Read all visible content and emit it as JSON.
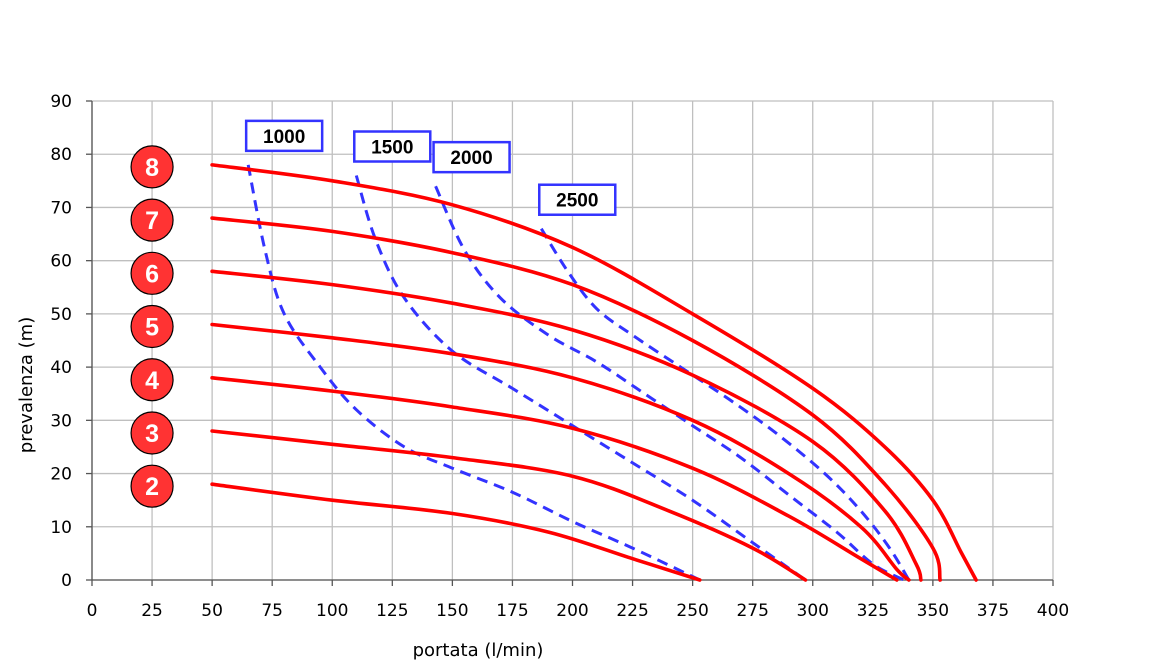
{
  "chart_data": {
    "type": "line",
    "title": "",
    "xlabel": "portata (l/min)",
    "ylabel": "prevalenza (m)",
    "xlim": [
      0,
      400
    ],
    "ylim": [
      0,
      90
    ],
    "x_ticks": [
      0,
      25,
      50,
      75,
      100,
      125,
      150,
      175,
      200,
      225,
      250,
      275,
      300,
      325,
      350,
      375,
      400
    ],
    "y_ticks": [
      0,
      10,
      20,
      30,
      40,
      50,
      60,
      70,
      80,
      90
    ],
    "grid": true,
    "series": [
      {
        "name": "2",
        "color": "#ff0000",
        "style": "solid",
        "points": [
          [
            50,
            18
          ],
          [
            100,
            15
          ],
          [
            150,
            12.5
          ],
          [
            190,
            9
          ],
          [
            225,
            4
          ],
          [
            253,
            0
          ]
        ]
      },
      {
        "name": "3",
        "color": "#ff0000",
        "style": "solid",
        "points": [
          [
            50,
            28
          ],
          [
            100,
            25.5
          ],
          [
            150,
            23
          ],
          [
            200,
            19.5
          ],
          [
            240,
            13
          ],
          [
            275,
            6
          ],
          [
            297,
            0
          ]
        ]
      },
      {
        "name": "4",
        "color": "#ff0000",
        "style": "solid",
        "points": [
          [
            50,
            38
          ],
          [
            100,
            35.5
          ],
          [
            150,
            32.5
          ],
          [
            200,
            28.5
          ],
          [
            250,
            21
          ],
          [
            290,
            12
          ],
          [
            320,
            4
          ],
          [
            335,
            0
          ]
        ]
      },
      {
        "name": "5",
        "color": "#ff0000",
        "style": "solid",
        "points": [
          [
            50,
            48
          ],
          [
            100,
            45.5
          ],
          [
            150,
            42.5
          ],
          [
            200,
            38
          ],
          [
            250,
            30
          ],
          [
            290,
            20
          ],
          [
            320,
            10
          ],
          [
            335,
            2
          ],
          [
            340,
            0
          ]
        ]
      },
      {
        "name": "6",
        "color": "#ff0000",
        "style": "solid",
        "points": [
          [
            50,
            58
          ],
          [
            100,
            55.5
          ],
          [
            150,
            52
          ],
          [
            200,
            47
          ],
          [
            250,
            38.5
          ],
          [
            300,
            26
          ],
          [
            330,
            13
          ],
          [
            343,
            3
          ],
          [
            345,
            0
          ]
        ]
      },
      {
        "name": "7",
        "color": "#ff0000",
        "style": "solid",
        "points": [
          [
            50,
            68
          ],
          [
            100,
            65.5
          ],
          [
            150,
            61.5
          ],
          [
            200,
            55.5
          ],
          [
            250,
            45
          ],
          [
            300,
            31
          ],
          [
            330,
            18
          ],
          [
            350,
            6
          ],
          [
            353,
            0
          ]
        ]
      },
      {
        "name": "8",
        "color": "#ff0000",
        "style": "solid",
        "points": [
          [
            50,
            78
          ],
          [
            100,
            75
          ],
          [
            150,
            70.5
          ],
          [
            200,
            62.5
          ],
          [
            250,
            50
          ],
          [
            300,
            36
          ],
          [
            330,
            25
          ],
          [
            350,
            15
          ],
          [
            362,
            5
          ],
          [
            368,
            0
          ]
        ]
      },
      {
        "name": "1000",
        "color": "#3333ff",
        "style": "dashed",
        "points": [
          [
            65,
            78
          ],
          [
            72,
            62
          ],
          [
            80,
            50
          ],
          [
            95,
            40
          ],
          [
            110,
            32
          ],
          [
            130,
            25
          ],
          [
            150,
            21
          ],
          [
            175,
            16.5
          ],
          [
            200,
            11
          ],
          [
            225,
            6
          ],
          [
            253,
            0
          ]
        ]
      },
      {
        "name": "1500",
        "color": "#3333ff",
        "style": "dashed",
        "points": [
          [
            110,
            76
          ],
          [
            118,
            64
          ],
          [
            130,
            53
          ],
          [
            150,
            43
          ],
          [
            175,
            36
          ],
          [
            200,
            29
          ],
          [
            225,
            22
          ],
          [
            250,
            15
          ],
          [
            275,
            7
          ],
          [
            297,
            0
          ]
        ]
      },
      {
        "name": "2000",
        "color": "#3333ff",
        "style": "dashed",
        "points": [
          [
            143,
            74
          ],
          [
            155,
            62
          ],
          [
            170,
            53
          ],
          [
            190,
            46
          ],
          [
            210,
            41
          ],
          [
            230,
            35
          ],
          [
            250,
            29
          ],
          [
            270,
            23
          ],
          [
            290,
            16
          ],
          [
            310,
            9
          ],
          [
            325,
            3
          ],
          [
            338,
            0
          ]
        ]
      },
      {
        "name": "2500",
        "color": "#3333ff",
        "style": "dashed",
        "points": [
          [
            187,
            66
          ],
          [
            198,
            58
          ],
          [
            210,
            51
          ],
          [
            225,
            46
          ],
          [
            245,
            40
          ],
          [
            265,
            34
          ],
          [
            285,
            27.5
          ],
          [
            305,
            20
          ],
          [
            320,
            13
          ],
          [
            332,
            6
          ],
          [
            340,
            0
          ]
        ]
      }
    ],
    "badges": [
      "8",
      "7",
      "6",
      "5",
      "4",
      "3",
      "2"
    ],
    "box_labels": [
      "1000",
      "1500",
      "2000",
      "2500"
    ]
  },
  "colors": {
    "pump_curve": "#ff0000",
    "efficiency_curve": "#3333ff",
    "badge_fill": "#ff3333",
    "grid": "#bfbfbf"
  }
}
